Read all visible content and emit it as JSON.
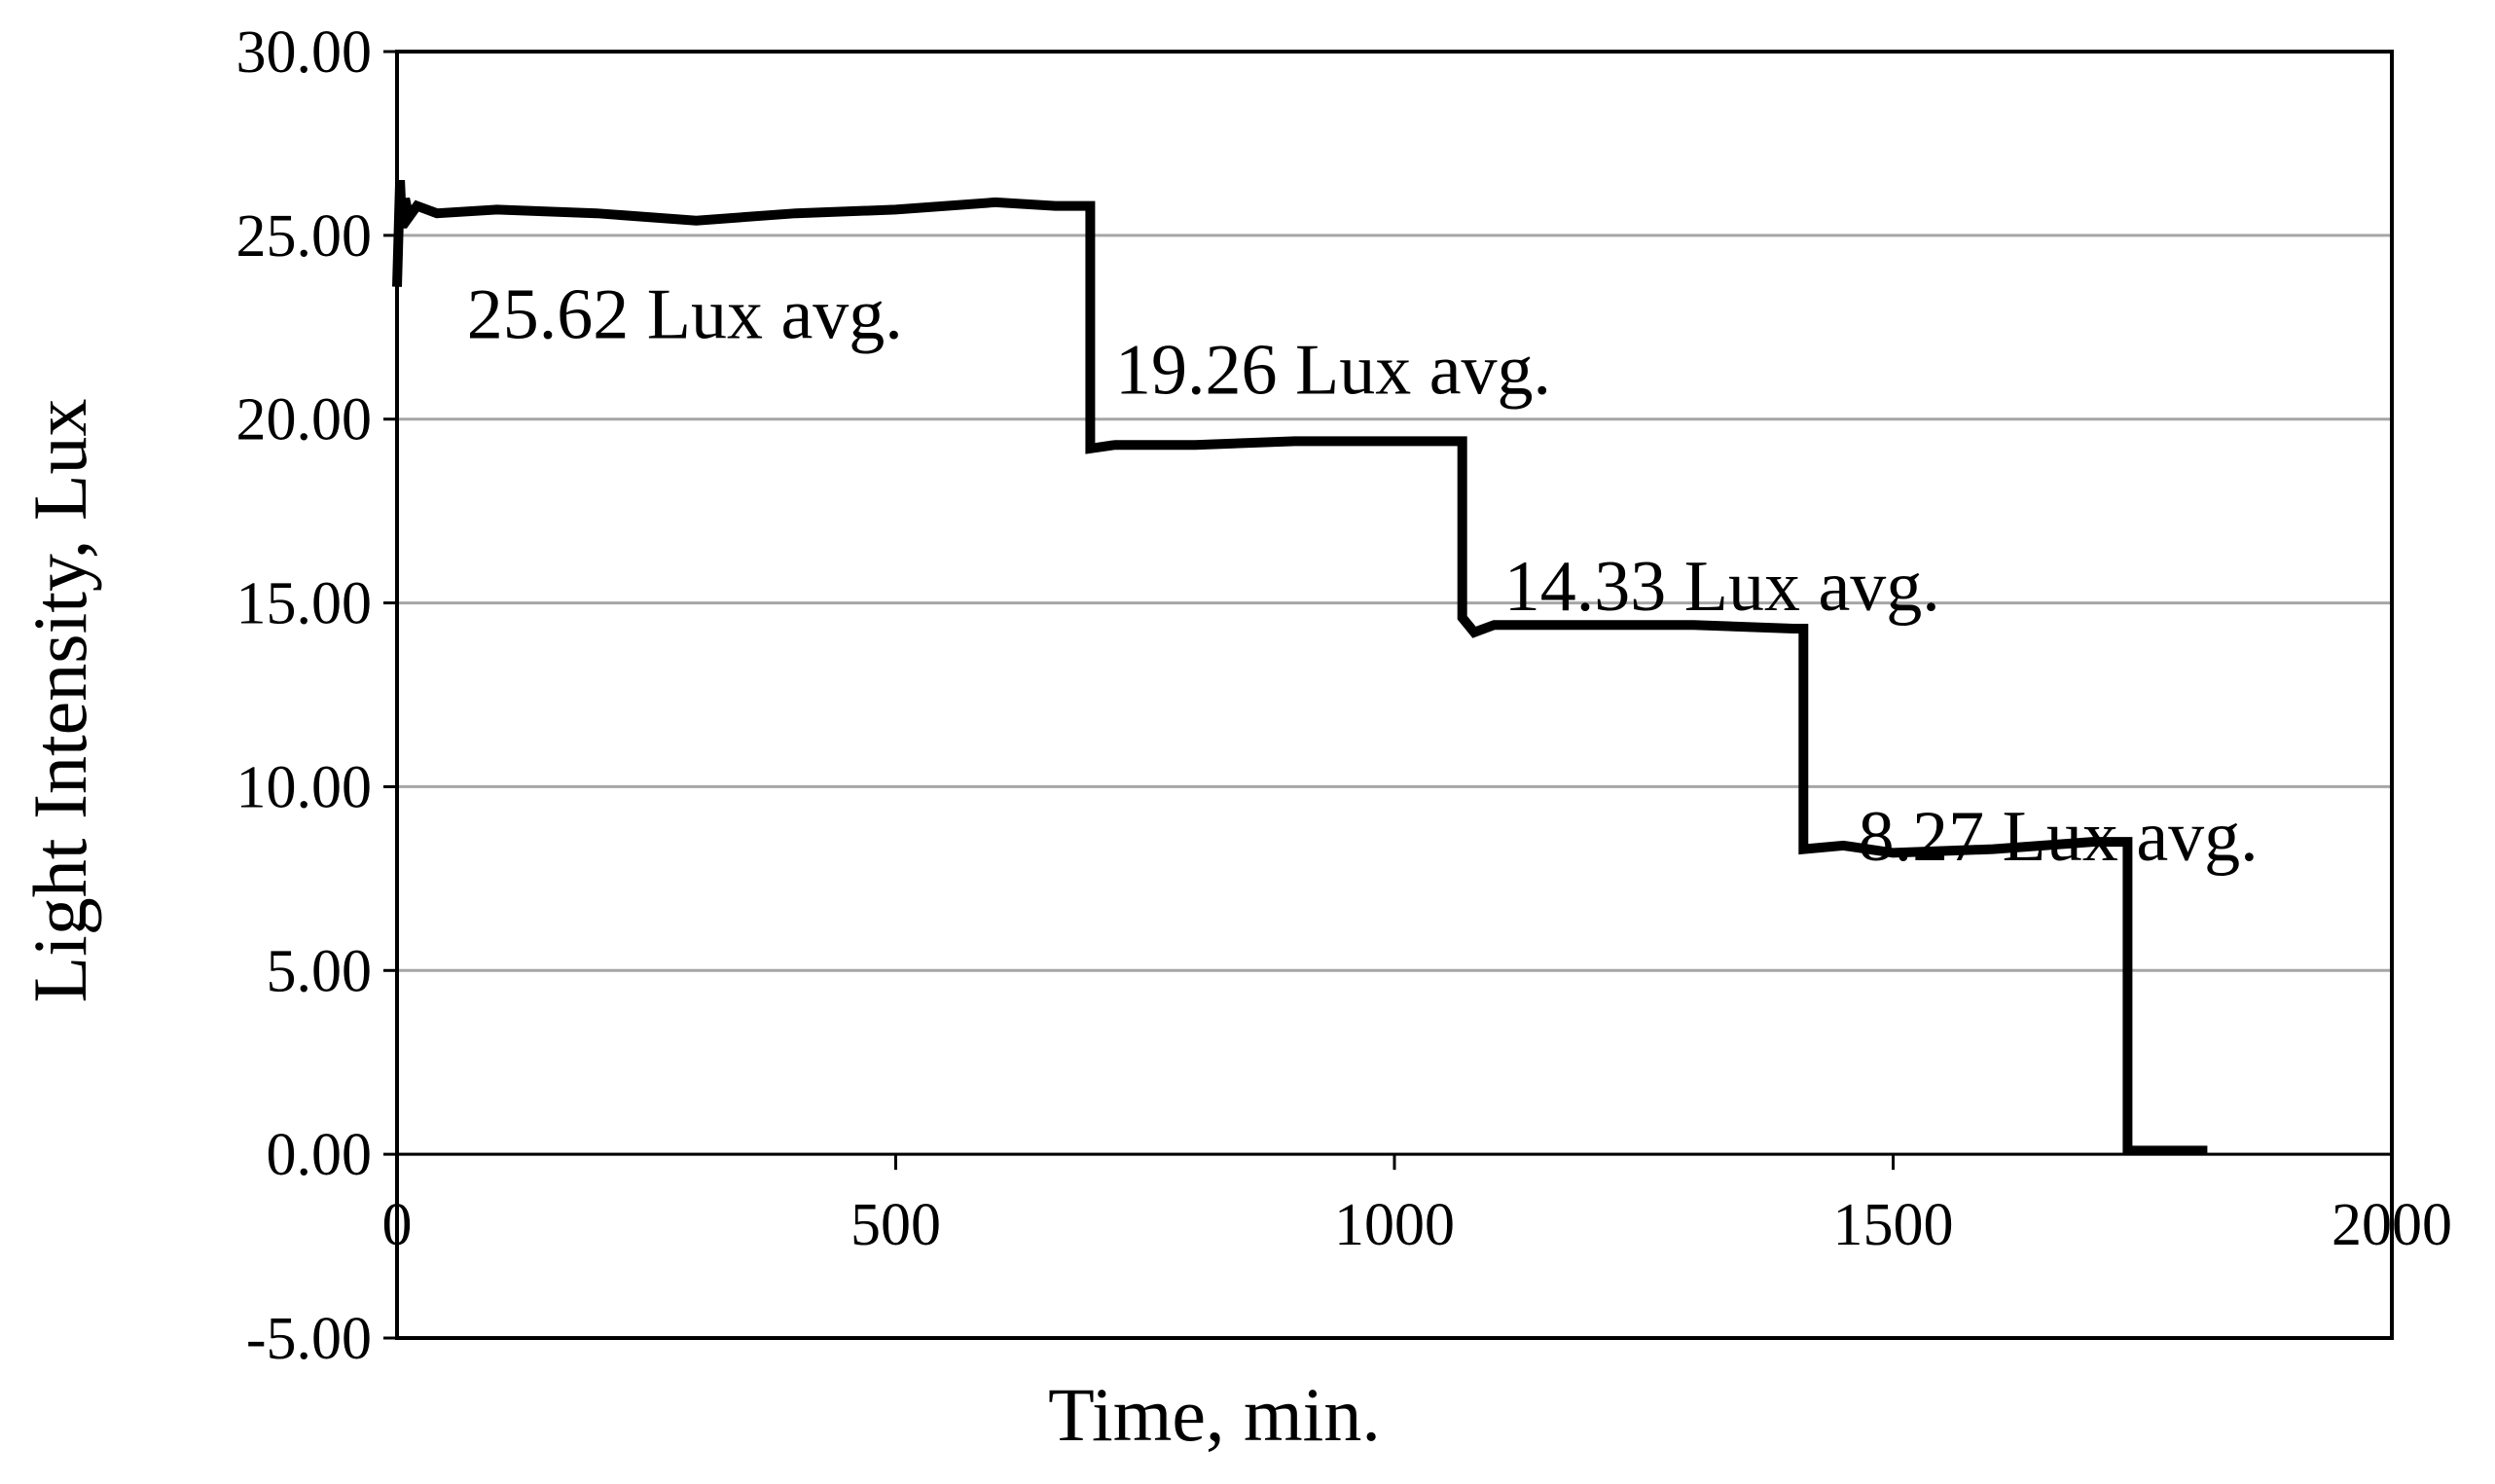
{
  "chart_data": {
    "type": "line",
    "title": "",
    "xlabel": "Time, min.",
    "ylabel": "Light Intensity, Lux",
    "xlim": [
      0,
      2000
    ],
    "ylim": [
      -5,
      30
    ],
    "x_ticks": [
      0,
      500,
      1000,
      1500,
      2000
    ],
    "x_tick_labels": [
      "0",
      "500",
      "1000",
      "1500",
      "2000"
    ],
    "y_ticks": [
      -5,
      0,
      5,
      10,
      15,
      20,
      25,
      30
    ],
    "y_tick_labels": [
      "-5.00",
      "0.00",
      "5.00",
      "10.00",
      "15.00",
      "20.00",
      "25.00",
      "30.00"
    ],
    "grid": "horizontal",
    "legend": "none",
    "line_color": "#000000",
    "grid_color": "#a6a6a6",
    "series": [
      {
        "x": [
          0,
          3,
          5,
          8,
          12,
          20,
          40,
          100,
          200,
          300,
          400,
          500,
          600,
          660,
          695,
          695,
          720,
          800,
          900,
          1000,
          1060,
          1068,
          1068,
          1080,
          1100,
          1200,
          1300,
          1400,
          1410,
          1410,
          1450,
          1500,
          1600,
          1700,
          1735,
          1735,
          1760,
          1815
        ],
        "y": [
          23.6,
          26.5,
          25.2,
          26.0,
          25.5,
          25.8,
          25.6,
          25.7,
          25.6,
          25.4,
          25.6,
          25.7,
          25.9,
          25.8,
          25.8,
          19.2,
          19.3,
          19.3,
          19.4,
          19.4,
          19.4,
          19.4,
          14.6,
          14.2,
          14.4,
          14.4,
          14.4,
          14.3,
          14.3,
          8.3,
          8.4,
          8.2,
          8.3,
          8.5,
          8.5,
          0.1,
          0.1,
          0.1
        ]
      }
    ],
    "annotations": [
      {
        "text": "25.62 Lux avg.",
        "x": 70,
        "y": 22.2
      },
      {
        "text": "19.26 Lux avg.",
        "x": 720,
        "y": 20.7
      },
      {
        "text": "14.33 Lux avg.",
        "x": 1110,
        "y": 14.8
      },
      {
        "text": "8.27 Lux avg.",
        "x": 1465,
        "y": 8.0
      }
    ]
  }
}
